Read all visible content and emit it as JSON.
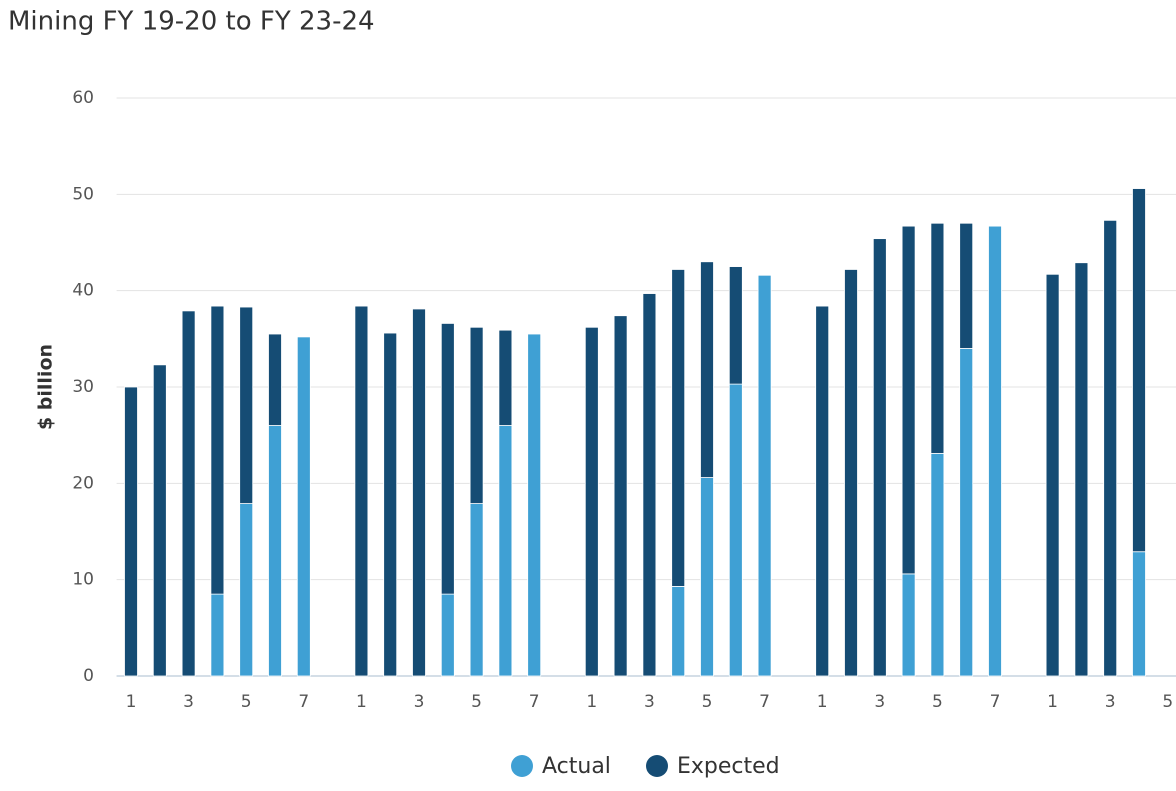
{
  "chart_data": {
    "type": "bar",
    "stacked": true,
    "title": "Mining FY 19-20 to FY 23-24",
    "y_label": "$ billion",
    "categories": [
      "1",
      null,
      "3",
      null,
      "5",
      null,
      "7",
      null,
      "1",
      null,
      "3",
      null,
      "5",
      null,
      "7",
      null,
      "1",
      null,
      "3",
      null,
      "5",
      null,
      "7",
      null,
      "1",
      null,
      "3",
      null,
      "5",
      null,
      "7",
      null,
      "1",
      null,
      "3",
      null,
      "5"
    ],
    "series": [
      {
        "name": "Actual",
        "color": "#3fa0d4",
        "values": [
          null,
          null,
          null,
          8.5,
          17.9,
          26,
          35.2,
          null,
          null,
          null,
          null,
          8.5,
          17.9,
          26,
          35.5,
          null,
          null,
          null,
          null,
          9.3,
          20.6,
          30.3,
          41.6,
          null,
          null,
          null,
          null,
          10.6,
          23.1,
          34,
          46.7,
          null,
          null,
          null,
          null,
          12.9,
          null
        ]
      },
      {
        "name": "Expected",
        "color": "#154c74",
        "values": [
          30,
          32.3,
          37.9,
          29.9,
          20.4,
          9.5,
          null,
          null,
          38.4,
          35.6,
          38.1,
          28.1,
          18.3,
          9.9,
          null,
          null,
          36.2,
          37.4,
          39.7,
          32.9,
          22.4,
          12.2,
          null,
          null,
          38.4,
          42.2,
          45.4,
          36.1,
          23.9,
          13,
          null,
          null,
          41.7,
          42.9,
          47.3,
          37.7,
          null
        ]
      }
    ],
    "ylim": [
      0,
      60
    ],
    "yticks": [
      0,
      10,
      20,
      30,
      40,
      50,
      60
    ],
    "grid": true,
    "legend": "bottom"
  }
}
